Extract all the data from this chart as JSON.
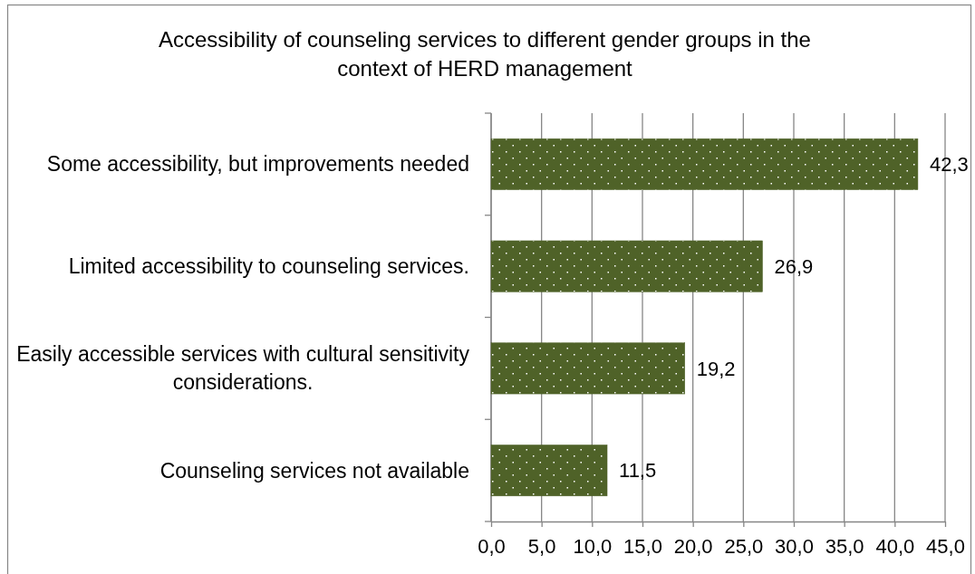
{
  "chart_data": {
    "type": "bar",
    "orientation": "horizontal",
    "title": "Accessibility of counseling services to different gender groups in the context of HERD management",
    "categories": [
      "Some accessibility, but improvements needed",
      "Limited accessibility to counseling services.",
      "Easily accessible services with cultural sensitivity considerations.",
      "Counseling services not available"
    ],
    "values": [
      42.3,
      26.9,
      19.2,
      11.5
    ],
    "value_labels": [
      "42,3",
      "26,9",
      "19,2",
      "11,5"
    ],
    "color": "#4f6228",
    "xlim": [
      0,
      45
    ],
    "xticks": [
      {
        "value": 0,
        "label": "0,0"
      },
      {
        "value": 5,
        "label": "5,0"
      },
      {
        "value": 10,
        "label": "10,0"
      },
      {
        "value": 15,
        "label": "15,0"
      },
      {
        "value": 20,
        "label": "20,0"
      },
      {
        "value": 25,
        "label": "25,0"
      },
      {
        "value": 30,
        "label": "30,0"
      },
      {
        "value": 35,
        "label": "35,0"
      },
      {
        "value": 40,
        "label": "40,0"
      },
      {
        "value": 45,
        "label": "45,0"
      }
    ],
    "grid": "x"
  }
}
